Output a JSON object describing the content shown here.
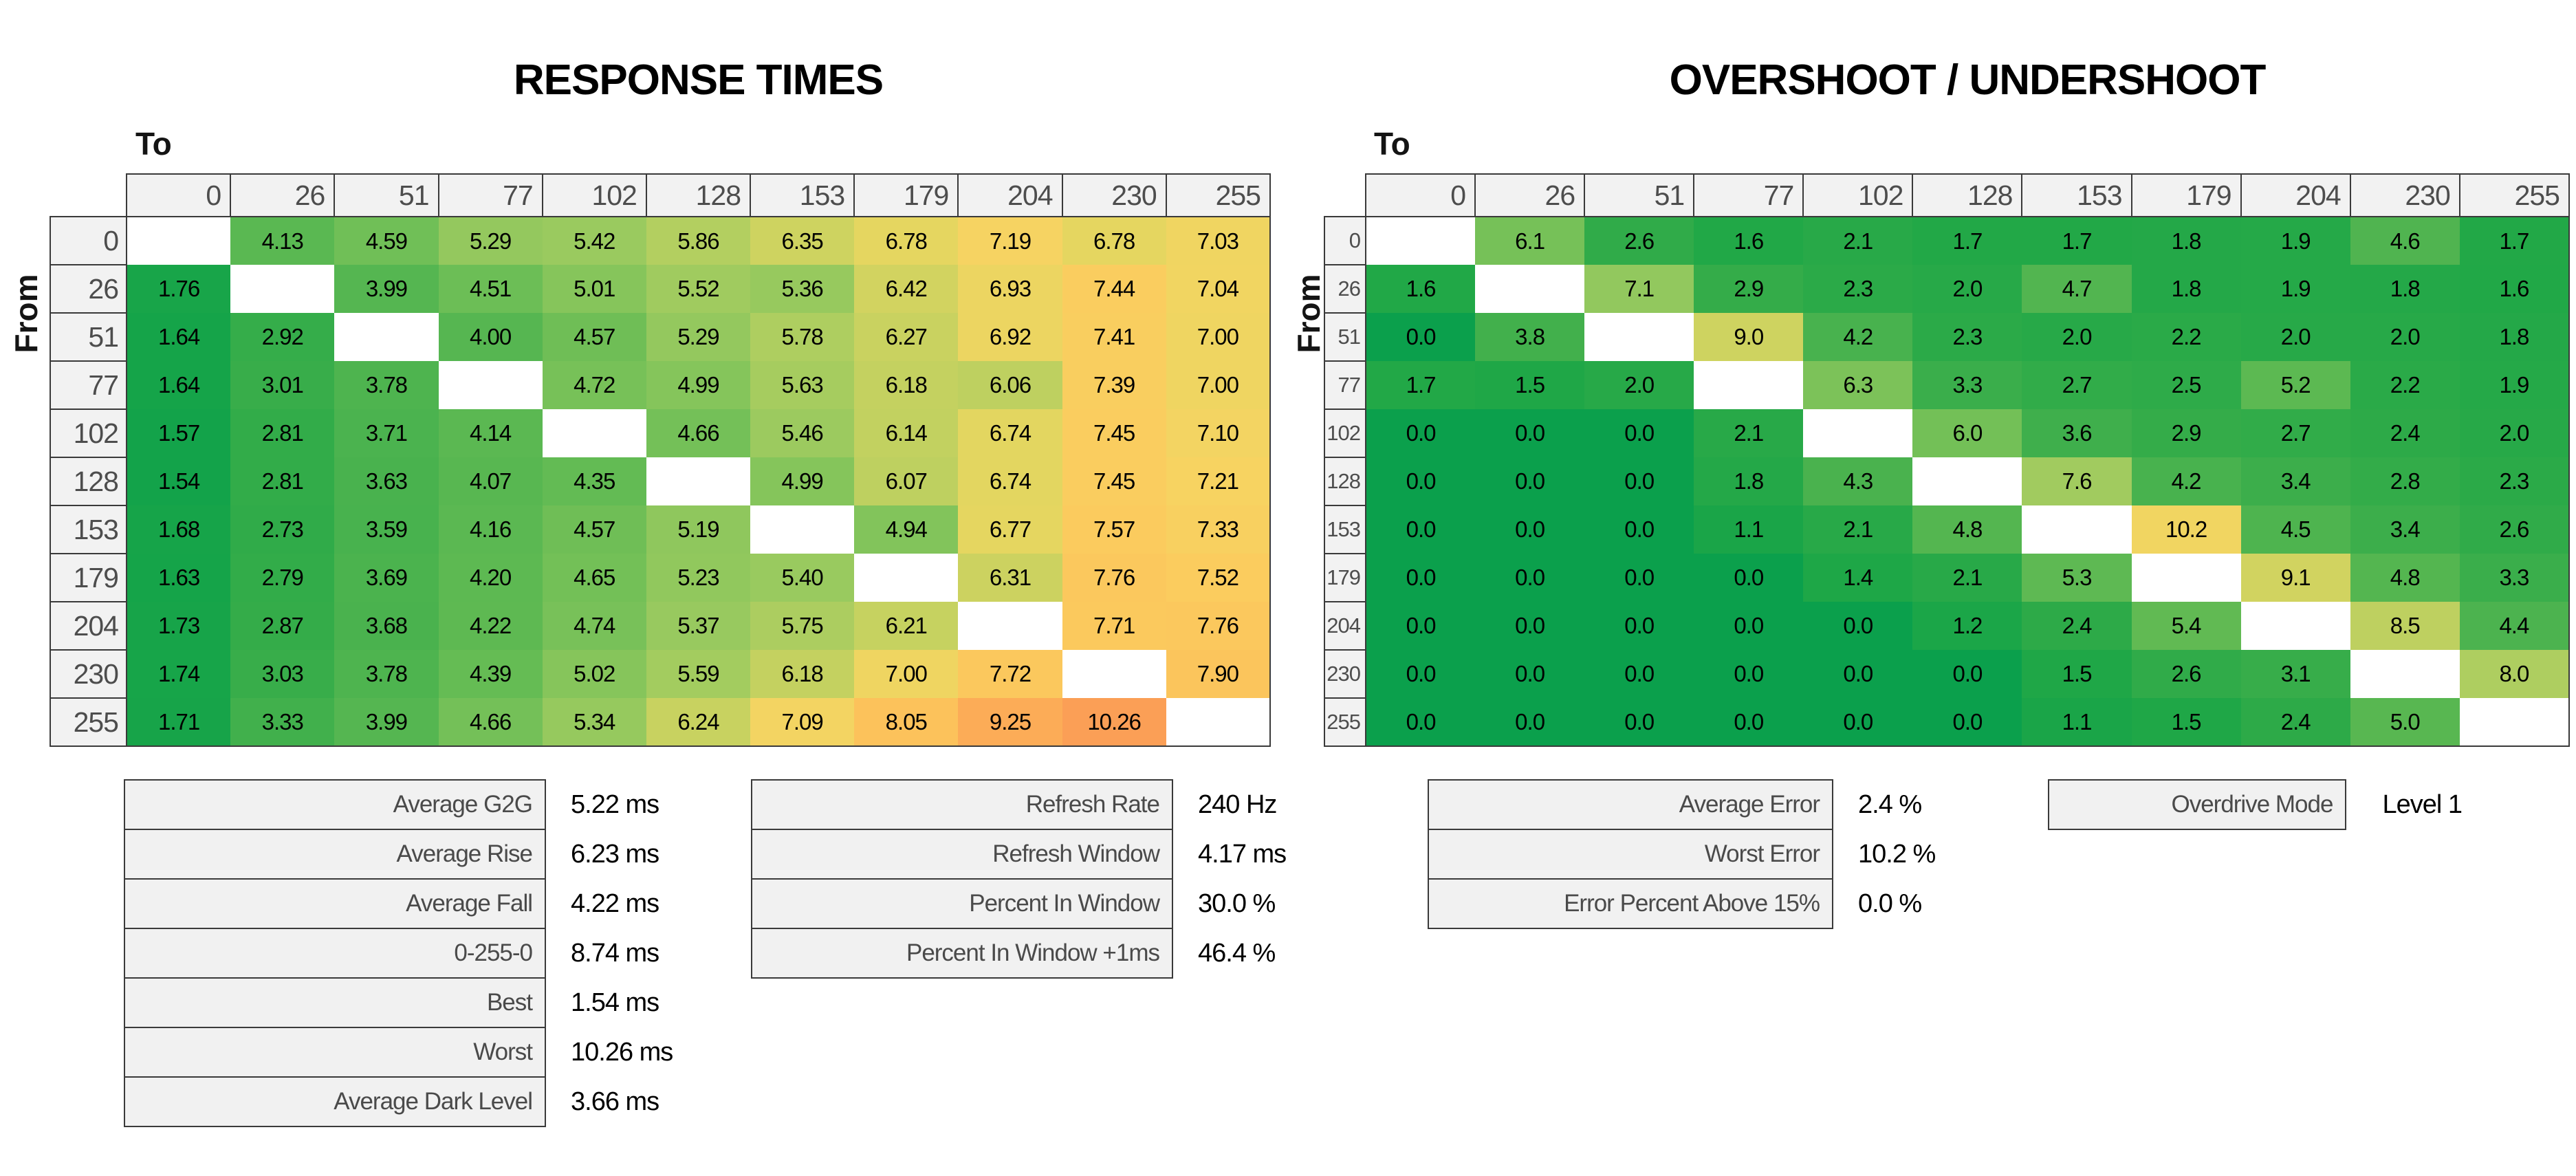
{
  "page": {
    "background": "#ffffff"
  },
  "chart_data": [
    {
      "type": "heatmap",
      "title": "RESPONSE TIMES",
      "x_axis_label": "To",
      "y_axis_label": "From",
      "unit": "ms",
      "categories": [
        "0",
        "26",
        "51",
        "77",
        "102",
        "128",
        "153",
        "179",
        "204",
        "230",
        "255"
      ],
      "values": [
        [
          null,
          "4.13",
          "4.59",
          "5.29",
          "5.42",
          "5.86",
          "6.35",
          "6.78",
          "7.19",
          "6.78",
          "7.03"
        ],
        [
          "1.76",
          null,
          "3.99",
          "4.51",
          "5.01",
          "5.52",
          "5.36",
          "6.42",
          "6.93",
          "7.44",
          "7.04"
        ],
        [
          "1.64",
          "2.92",
          null,
          "4.00",
          "4.57",
          "5.29",
          "5.78",
          "6.27",
          "6.92",
          "7.41",
          "7.00"
        ],
        [
          "1.64",
          "3.01",
          "3.78",
          null,
          "4.72",
          "4.99",
          "5.63",
          "6.18",
          "6.06",
          "7.39",
          "7.00"
        ],
        [
          "1.57",
          "2.81",
          "3.71",
          "4.14",
          null,
          "4.66",
          "5.46",
          "6.14",
          "6.74",
          "7.45",
          "7.10"
        ],
        [
          "1.54",
          "2.81",
          "3.63",
          "4.07",
          "4.35",
          null,
          "4.99",
          "6.07",
          "6.74",
          "7.45",
          "7.21"
        ],
        [
          "1.68",
          "2.73",
          "3.59",
          "4.16",
          "4.57",
          "5.19",
          null,
          "4.94",
          "6.77",
          "7.57",
          "7.33"
        ],
        [
          "1.63",
          "2.79",
          "3.69",
          "4.20",
          "4.65",
          "5.23",
          "5.40",
          null,
          "6.31",
          "7.76",
          "7.52"
        ],
        [
          "1.73",
          "2.87",
          "3.68",
          "4.22",
          "4.74",
          "5.37",
          "5.75",
          "6.21",
          null,
          "7.71",
          "7.76"
        ],
        [
          "1.74",
          "3.03",
          "3.78",
          "4.39",
          "5.02",
          "5.59",
          "6.18",
          "7.00",
          "7.72",
          null,
          "7.90"
        ],
        [
          "1.71",
          "3.33",
          "3.99",
          "4.66",
          "5.34",
          "6.24",
          "7.09",
          "8.05",
          "9.25",
          "10.26",
          null
        ]
      ],
      "color_anchors": {
        "v": [
          1.54,
          7.44,
          10.26
        ],
        "t": [
          0.04,
          0.77,
          0.975
        ]
      }
    },
    {
      "type": "heatmap",
      "title": "OVERSHOOT / UNDERSHOOT",
      "x_axis_label": "To",
      "y_axis_label": "From",
      "unit": "%",
      "categories": [
        "0",
        "26",
        "51",
        "77",
        "102",
        "128",
        "153",
        "179",
        "204",
        "230",
        "255"
      ],
      "values": [
        [
          null,
          "6.1",
          "2.6",
          "1.6",
          "2.1",
          "1.7",
          "1.7",
          "1.8",
          "1.9",
          "4.6",
          "1.7"
        ],
        [
          "1.6",
          null,
          "7.1",
          "2.9",
          "2.3",
          "2.0",
          "4.7",
          "1.8",
          "1.9",
          "1.8",
          "1.6"
        ],
        [
          "0.0",
          "3.8",
          null,
          "9.0",
          "4.2",
          "2.3",
          "2.0",
          "2.2",
          "2.0",
          "2.0",
          "1.8"
        ],
        [
          "1.7",
          "1.5",
          "2.0",
          null,
          "6.3",
          "3.3",
          "2.7",
          "2.5",
          "5.2",
          "2.2",
          "1.9"
        ],
        [
          "0.0",
          "0.0",
          "0.0",
          "2.1",
          null,
          "6.0",
          "3.6",
          "2.9",
          "2.7",
          "2.4",
          "2.0"
        ],
        [
          "0.0",
          "0.0",
          "0.0",
          "1.8",
          "4.3",
          null,
          "7.6",
          "4.2",
          "3.4",
          "2.8",
          "2.3"
        ],
        [
          "0.0",
          "0.0",
          "0.0",
          "1.1",
          "2.1",
          "4.8",
          null,
          "10.2",
          "4.5",
          "3.4",
          "2.6"
        ],
        [
          "0.0",
          "0.0",
          "0.0",
          "0.0",
          "1.4",
          "2.1",
          "5.3",
          null,
          "9.1",
          "4.8",
          "3.3"
        ],
        [
          "0.0",
          "0.0",
          "0.0",
          "0.0",
          "0.0",
          "1.2",
          "2.4",
          "5.4",
          null,
          "8.5",
          "4.4"
        ],
        [
          "0.0",
          "0.0",
          "0.0",
          "0.0",
          "0.0",
          "0.0",
          "1.5",
          "2.6",
          "3.1",
          null,
          "8.0"
        ],
        [
          "0.0",
          "0.0",
          "0.0",
          "0.0",
          "0.0",
          "0.0",
          "1.1",
          "1.5",
          "2.4",
          "5.0",
          null
        ]
      ],
      "color_anchors": {
        "v": [
          0,
          10.2,
          15.0
        ],
        "t": [
          0.0,
          0.72,
          1.0
        ]
      }
    }
  ],
  "color_scale": {
    "stops": [
      [
        0.0,
        "#0ba04c"
      ],
      [
        0.1,
        "#1ea747"
      ],
      [
        0.2,
        "#33ac49"
      ],
      [
        0.3,
        "#49b24e"
      ],
      [
        0.38,
        "#60ba53"
      ],
      [
        0.45,
        "#7ec35a"
      ],
      [
        0.52,
        "#9aca5f"
      ],
      [
        0.58,
        "#b5cf60"
      ],
      [
        0.64,
        "#d0d360"
      ],
      [
        0.69,
        "#e6d660"
      ],
      [
        0.735,
        "#f6d462"
      ],
      [
        0.78,
        "#fbcb5e"
      ],
      [
        0.84,
        "#fcbc58"
      ],
      [
        0.9,
        "#fcac57"
      ],
      [
        1.0,
        "#fb9a55"
      ]
    ],
    "empty_cell_color": "#ffffff"
  },
  "summary_tables": {
    "response_summary": {
      "rows": [
        {
          "label": "Average G2G",
          "value": "5.22 ms"
        },
        {
          "label": "Average Rise",
          "value": "6.23 ms"
        },
        {
          "label": "Average Fall",
          "value": "4.22 ms"
        },
        {
          "label": "0-255-0",
          "value": "8.74 ms"
        },
        {
          "label": "Best",
          "value": "1.54 ms"
        },
        {
          "label": "Worst",
          "value": "10.26 ms"
        },
        {
          "label": "Average Dark Level",
          "value": "3.66 ms"
        }
      ]
    },
    "refresh_summary": {
      "rows": [
        {
          "label": "Refresh Rate",
          "value": "240 Hz"
        },
        {
          "label": "Refresh Window",
          "value": "4.17 ms"
        },
        {
          "label": "Percent In Window",
          "value": "30.0 %"
        },
        {
          "label": "Percent In Window +1ms",
          "value": "46.4 %"
        }
      ]
    },
    "error_summary": {
      "rows": [
        {
          "label": "Average Error",
          "value": "2.4 %"
        },
        {
          "label": "Worst Error",
          "value": "10.2 %"
        },
        {
          "label": "Error Percent Above 15%",
          "value": "0.0 %"
        }
      ]
    },
    "overdrive": {
      "rows": [
        {
          "label": "Overdrive Mode",
          "value": "Level 1"
        }
      ]
    }
  }
}
